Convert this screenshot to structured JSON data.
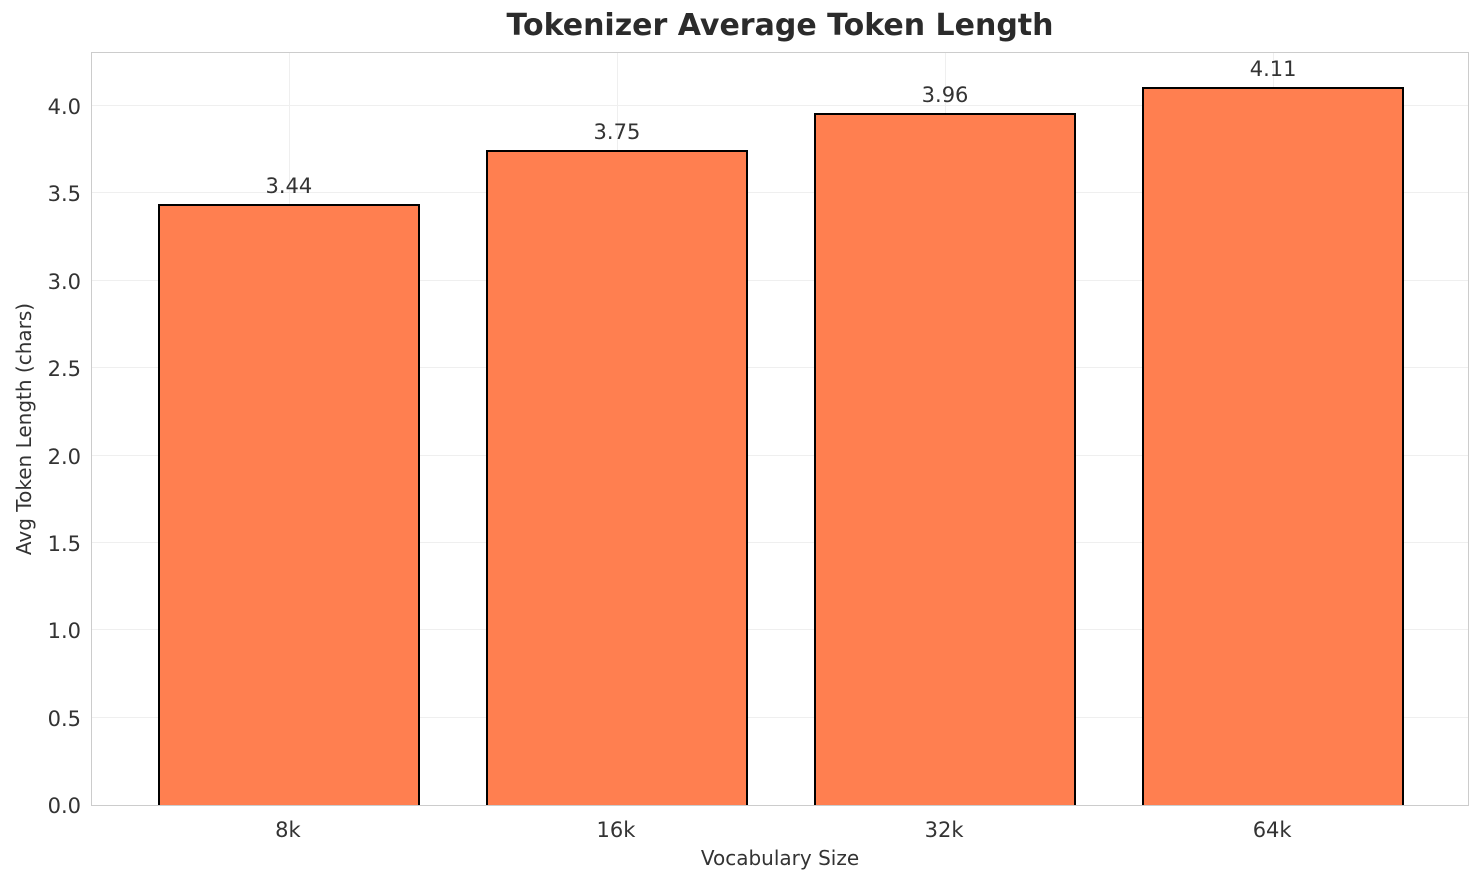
{
  "chart_data": {
    "type": "bar",
    "title": "Tokenizer Average Token Length",
    "xlabel": "Vocabulary Size",
    "ylabel": "Avg Token Length (chars)",
    "categories": [
      "8k",
      "16k",
      "32k",
      "64k"
    ],
    "values": [
      3.44,
      3.75,
      3.96,
      4.11
    ],
    "value_labels": [
      "3.44",
      "3.75",
      "3.96",
      "4.11"
    ],
    "y_ticks": [
      "0.0",
      "0.5",
      "1.0",
      "1.5",
      "2.0",
      "2.5",
      "3.0",
      "3.5",
      "4.0"
    ],
    "ylim": [
      0,
      4.315
    ],
    "grid": true,
    "legend_position": "none",
    "colors": {
      "bar_fill": "#FF7F50",
      "bar_edge": "#000000",
      "grid": "#efefef",
      "spine": "#cccccc",
      "text": "#333333",
      "title_text": "#2b2b2b"
    }
  }
}
